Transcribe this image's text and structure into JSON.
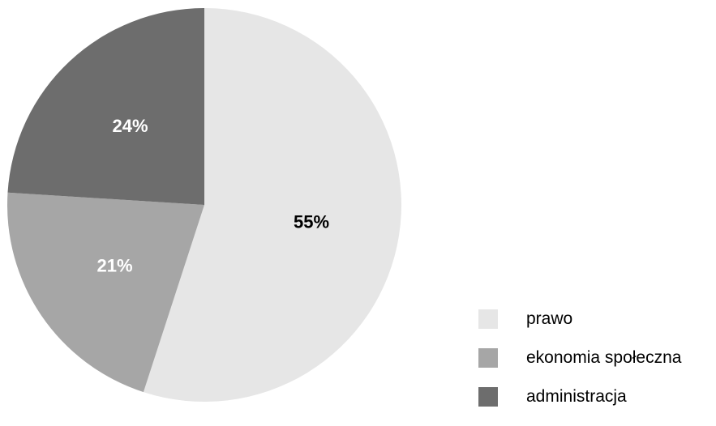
{
  "chart_data": {
    "type": "pie",
    "title": "",
    "slices": [
      {
        "name": "prawo",
        "value": 55,
        "label": "55%",
        "color": "#e6e6e6",
        "label_color": "#000000"
      },
      {
        "name": "ekonomia społeczna",
        "value": 21,
        "label": "21%",
        "color": "#a6a6a6",
        "label_color": "#ffffff"
      },
      {
        "name": "administracja",
        "value": 24,
        "label": "24%",
        "color": "#6d6d6d",
        "label_color": "#ffffff"
      }
    ],
    "start_angle_deg": 0,
    "direction": "clockwise",
    "legend_position": "bottom-right"
  }
}
